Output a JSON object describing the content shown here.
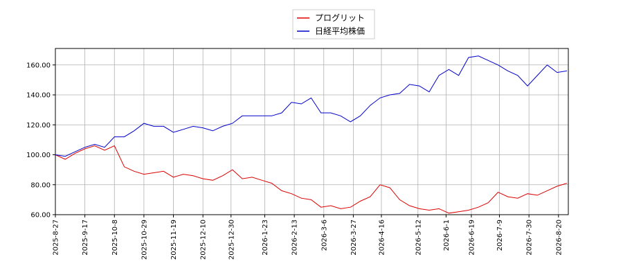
{
  "chart_data": {
    "type": "line",
    "x": [
      "2025-8-27",
      "2025-9-3",
      "2025-9-10",
      "2025-9-17",
      "2025-9-24",
      "2025-10-1",
      "2025-10-8",
      "2025-10-15",
      "2025-10-22",
      "2025-10-29",
      "2025-11-5",
      "2025-11-12",
      "2025-11-19",
      "2025-11-26",
      "2025-12-3",
      "2025-12-10",
      "2025-12-17",
      "2025-12-24",
      "2025-12-31",
      "2026-1-7",
      "2026-1-14",
      "2026-1-21",
      "2026-1-28",
      "2026-2-4",
      "2026-2-11",
      "2026-2-18",
      "2026-2-25",
      "2026-3-4",
      "2026-3-11",
      "2026-3-18",
      "2026-3-25",
      "2026-4-1",
      "2026-4-8",
      "2026-4-15",
      "2026-4-22",
      "2026-4-29",
      "2026-5-6",
      "2026-5-13",
      "2026-5-20",
      "2026-5-27",
      "2026-6-3",
      "2026-6-10",
      "2026-6-17",
      "2026-6-24",
      "2026-7-1",
      "2026-7-8",
      "2026-7-15",
      "2026-7-22",
      "2026-7-29",
      "2026-8-5",
      "2026-8-12",
      "2026-8-19",
      "2026-8-26"
    ],
    "series": [
      {
        "name": "プログリット",
        "color": "#dd0000",
        "values": [
          100,
          97,
          101,
          104,
          106,
          103,
          106,
          92,
          89,
          87,
          88,
          89,
          85,
          87,
          86,
          84,
          83,
          86,
          90,
          84,
          85,
          83,
          81,
          76,
          74,
          71,
          70,
          65,
          66,
          64,
          65,
          69,
          72,
          80,
          78,
          70,
          66,
          64,
          63,
          64,
          61,
          62,
          63,
          65,
          68,
          75,
          72,
          71,
          74,
          73,
          76,
          79,
          81
        ]
      },
      {
        "name": "日経平均株価",
        "color": "#0000cc",
        "values": [
          100,
          99,
          102,
          105,
          107,
          105,
          112,
          112,
          116,
          121,
          119,
          119,
          115,
          117,
          119,
          118,
          116,
          119,
          121,
          126,
          126,
          126,
          126,
          128,
          135,
          134,
          138,
          128,
          128,
          126,
          122,
          126,
          133,
          138,
          140,
          141,
          147,
          146,
          142,
          153,
          157,
          153,
          165,
          166,
          163,
          160,
          156,
          153,
          146,
          153,
          160,
          155,
          156
        ]
      }
    ],
    "xlim": [
      "2025-8-27",
      "2026-8-27"
    ],
    "xticks": [
      "2025-8-27",
      "2025-9-17",
      "2025-10-8",
      "2025-10-29",
      "2025-11-19",
      "2025-12-10",
      "2025-12-30",
      "2026-1-23",
      "2026-2-13",
      "2026-3-6",
      "2026-3-27",
      "2026-4-16",
      "2026-5-12",
      "2026-6-1",
      "2026-6-19",
      "2026-7-9",
      "2026-7-30",
      "2026-8-20"
    ],
    "ylim": [
      60,
      171
    ],
    "yticks": [
      {
        "value": 60,
        "label": "60.00"
      },
      {
        "value": 80,
        "label": "80.00"
      },
      {
        "value": 100,
        "label": "100.00"
      },
      {
        "value": 120,
        "label": "120.00"
      },
      {
        "value": 140,
        "label": "140.00"
      },
      {
        "value": 160,
        "label": "160.00"
      }
    ],
    "grid": true
  }
}
